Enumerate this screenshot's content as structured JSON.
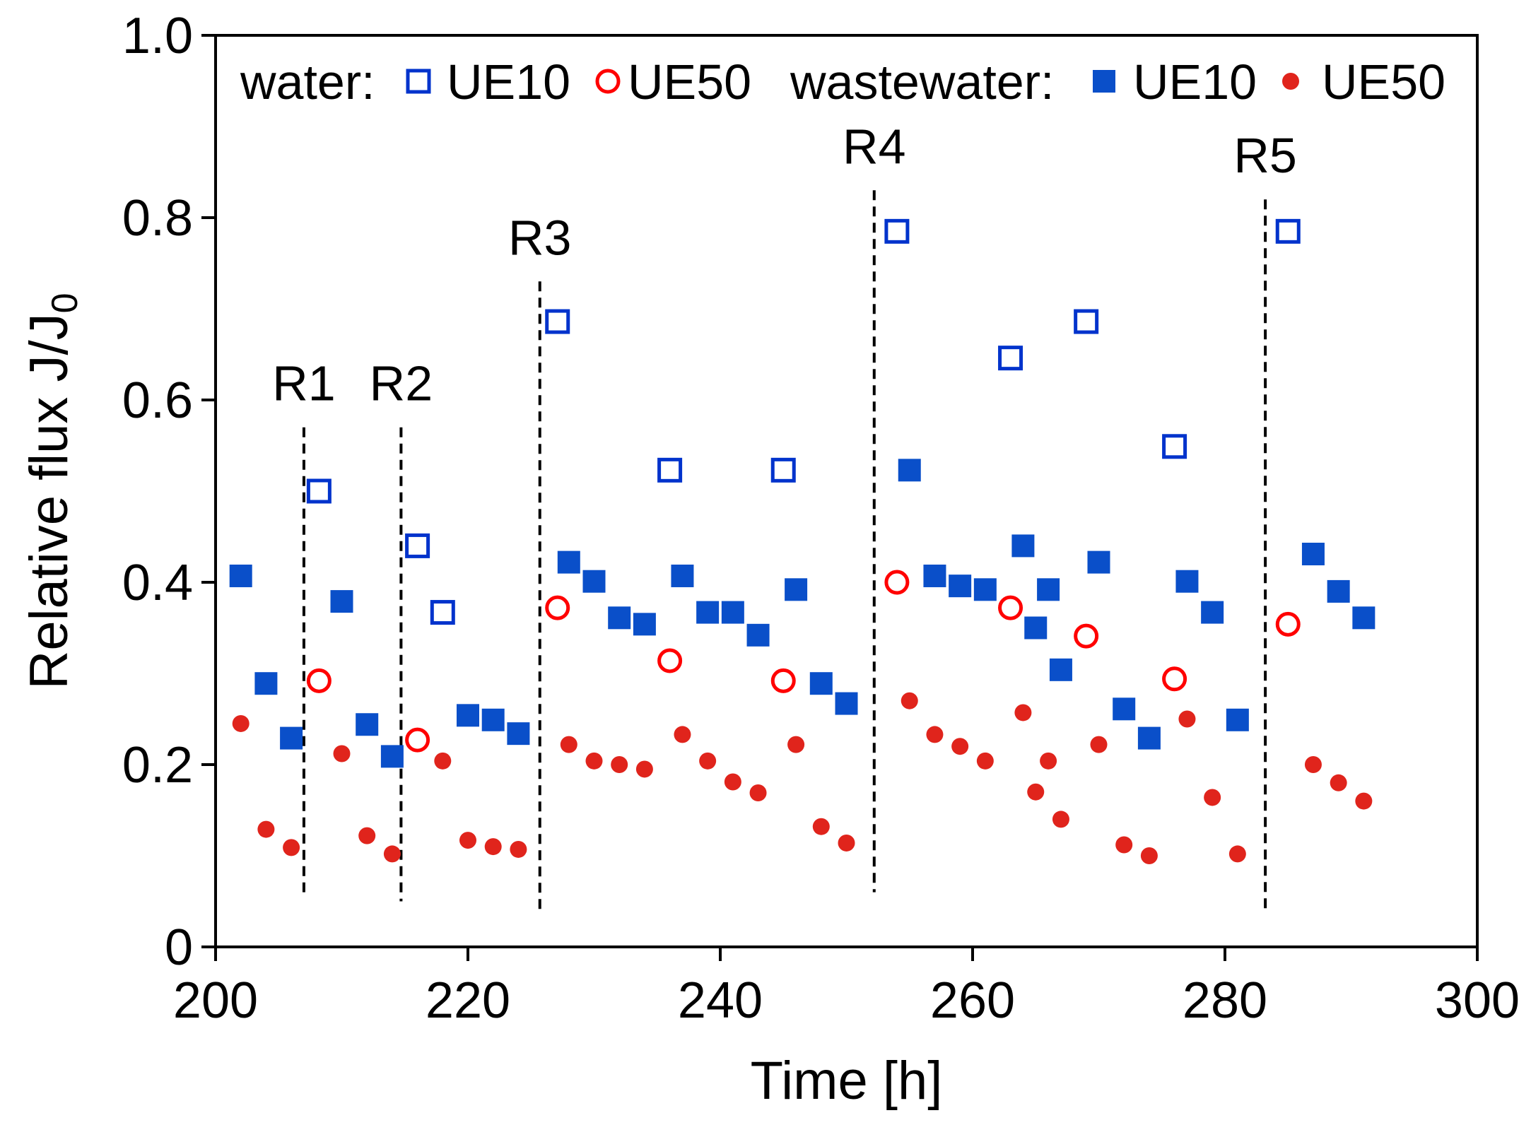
{
  "chart_data": {
    "type": "scatter",
    "xlabel": "Time [h]",
    "ylabel_main": "Relative flux J/J",
    "ylabel_sub": "0",
    "xlim": [
      200,
      300
    ],
    "ylim": [
      0,
      1
    ],
    "x_ticks": [
      200,
      220,
      240,
      260,
      280,
      300
    ],
    "x_tick_labels": [
      "200",
      "220",
      "240",
      "260",
      "280",
      "300"
    ],
    "y_ticks": [
      0,
      0.2,
      0.4,
      0.6,
      0.8,
      1.0
    ],
    "y_tick_labels": [
      "0",
      "0.2",
      "0.4",
      "0.6",
      "0.8",
      "1.0"
    ],
    "grid": false,
    "legend": {
      "placement": "top",
      "group_water": "water:",
      "group_wastewater": "wastewater:",
      "entries": [
        {
          "label": "UE10",
          "series": "water_UE10"
        },
        {
          "label": "UE50",
          "series": "water_UE50"
        },
        {
          "label": "UE10",
          "series": "wastewater_UE10"
        },
        {
          "label": "UE50",
          "series": "wastewater_UE50"
        }
      ]
    },
    "colors": {
      "blue": "#0033cc",
      "blue_fill": "#0a4fc9",
      "red": "#ff0000",
      "red_fill": "#e0241c"
    },
    "regeneration_lines": [
      {
        "label": "R1",
        "x": 207,
        "y_top": 0.57,
        "y_bottom": 0.06
      },
      {
        "label": "R2",
        "x": 214.7,
        "y_top": 0.57,
        "y_bottom": 0.05
      },
      {
        "label": "R3",
        "x": 225.7,
        "y_top": 0.73,
        "y_bottom": 0.04
      },
      {
        "label": "R4",
        "x": 252.2,
        "y_top": 0.83,
        "y_bottom": 0.06
      },
      {
        "label": "R5",
        "x": 283.2,
        "y_top": 0.82,
        "y_bottom": 0.04
      }
    ],
    "series": [
      {
        "id": "water_UE10",
        "marker": "open-square",
        "points": [
          [
            208.2,
            0.5
          ],
          [
            216,
            0.44
          ],
          [
            218,
            0.367
          ],
          [
            227.1,
            0.686
          ],
          [
            236,
            0.523
          ],
          [
            245,
            0.523
          ],
          [
            254,
            0.785
          ],
          [
            263,
            0.646
          ],
          [
            269,
            0.686
          ],
          [
            276,
            0.549
          ],
          [
            285,
            0.785
          ]
        ]
      },
      {
        "id": "water_UE50",
        "marker": "open-circle",
        "points": [
          [
            208.2,
            0.292
          ],
          [
            216,
            0.227
          ],
          [
            227.1,
            0.372
          ],
          [
            236,
            0.314
          ],
          [
            245,
            0.292
          ],
          [
            254,
            0.4
          ],
          [
            263,
            0.372
          ],
          [
            269,
            0.341
          ],
          [
            276,
            0.294
          ],
          [
            285,
            0.354
          ]
        ]
      },
      {
        "id": "wastewater_UE10",
        "marker": "filled-square",
        "points": [
          [
            202,
            0.407
          ],
          [
            204,
            0.289
          ],
          [
            206,
            0.229
          ],
          [
            210,
            0.379
          ],
          [
            212,
            0.244
          ],
          [
            214,
            0.209
          ],
          [
            218,
            0.367
          ],
          [
            220,
            0.254
          ],
          [
            222,
            0.249
          ],
          [
            224,
            0.234
          ],
          [
            228,
            0.422
          ],
          [
            230,
            0.401
          ],
          [
            232,
            0.361
          ],
          [
            234,
            0.354
          ],
          [
            237,
            0.407
          ],
          [
            239,
            0.367
          ],
          [
            241,
            0.367
          ],
          [
            243,
            0.342
          ],
          [
            246,
            0.392
          ],
          [
            248,
            0.289
          ],
          [
            250,
            0.267
          ],
          [
            255,
            0.523
          ],
          [
            257,
            0.407
          ],
          [
            259,
            0.396
          ],
          [
            261,
            0.392
          ],
          [
            264,
            0.44
          ],
          [
            265,
            0.35
          ],
          [
            266,
            0.392
          ],
          [
            267,
            0.304
          ],
          [
            270,
            0.422
          ],
          [
            272,
            0.261
          ],
          [
            274,
            0.229
          ],
          [
            277,
            0.401
          ],
          [
            279,
            0.367
          ],
          [
            281,
            0.249
          ],
          [
            287,
            0.431
          ],
          [
            289,
            0.39
          ],
          [
            291,
            0.361
          ]
        ]
      },
      {
        "id": "wastewater_UE50",
        "marker": "filled-circle",
        "points": [
          [
            202,
            0.245
          ],
          [
            204,
            0.129
          ],
          [
            206,
            0.109
          ],
          [
            210,
            0.212
          ],
          [
            212,
            0.122
          ],
          [
            214,
            0.102
          ],
          [
            218,
            0.204
          ],
          [
            220,
            0.117
          ],
          [
            222,
            0.11
          ],
          [
            224,
            0.107
          ],
          [
            228,
            0.222
          ],
          [
            230,
            0.204
          ],
          [
            232,
            0.2
          ],
          [
            234,
            0.195
          ],
          [
            237,
            0.233
          ],
          [
            239,
            0.204
          ],
          [
            241,
            0.181
          ],
          [
            243,
            0.169
          ],
          [
            246,
            0.222
          ],
          [
            248,
            0.132
          ],
          [
            250,
            0.114
          ],
          [
            255,
            0.27
          ],
          [
            257,
            0.233
          ],
          [
            259,
            0.22
          ],
          [
            261,
            0.204
          ],
          [
            264,
            0.257
          ],
          [
            265,
            0.17
          ],
          [
            266,
            0.204
          ],
          [
            267,
            0.14
          ],
          [
            270,
            0.222
          ],
          [
            272,
            0.112
          ],
          [
            274,
            0.1
          ],
          [
            277,
            0.25
          ],
          [
            279,
            0.164
          ],
          [
            281,
            0.102
          ],
          [
            287,
            0.2
          ],
          [
            289,
            0.18
          ],
          [
            291,
            0.16
          ]
        ]
      }
    ]
  }
}
